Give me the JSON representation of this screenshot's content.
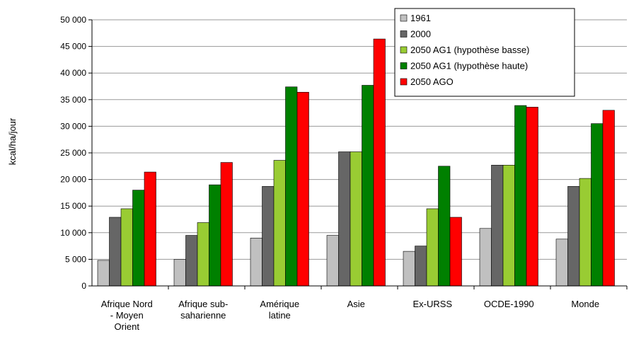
{
  "chart_data": {
    "type": "bar",
    "title": "",
    "xlabel": "",
    "ylabel": "kcal/ha/jour",
    "ylim": [
      0,
      50000
    ],
    "yticks": [
      0,
      5000,
      10000,
      15000,
      20000,
      25000,
      30000,
      35000,
      40000,
      45000,
      50000
    ],
    "ytick_labels": [
      "0",
      "5 000",
      "10 000",
      "15 000",
      "20 000",
      "25 000",
      "30 000",
      "35 000",
      "40 000",
      "45 000",
      "50 000"
    ],
    "grid": true,
    "legend_position": "top-right",
    "categories": [
      [
        "Afrique Nord",
        "- Moyen",
        "Orient"
      ],
      [
        "Afrique sub-",
        "saharienne"
      ],
      [
        "Amérique",
        "latine"
      ],
      [
        "Asie"
      ],
      [
        "Ex-URSS"
      ],
      [
        "OCDE-1990"
      ],
      [
        "Monde"
      ]
    ],
    "series": [
      {
        "name": "1961",
        "color": "#c0c0c0",
        "values": [
          4800,
          5000,
          9000,
          9500,
          6500,
          10800,
          8800
        ]
      },
      {
        "name": "2000",
        "color": "#666666",
        "values": [
          12900,
          9500,
          18700,
          25200,
          7500,
          22700,
          18700
        ]
      },
      {
        "name": "2050 AG1 (hypothèse basse)",
        "color": "#99cc33",
        "values": [
          14500,
          11900,
          23600,
          25200,
          14500,
          22700,
          20200
        ]
      },
      {
        "name": "2050 AG1 (hypothèse haute)",
        "color": "#008000",
        "values": [
          18000,
          19000,
          37400,
          37700,
          22500,
          33900,
          30500
        ]
      },
      {
        "name": "2050 AGO",
        "color": "#ff0000",
        "values": [
          21400,
          23200,
          36400,
          46400,
          12900,
          33600,
          33000
        ]
      }
    ]
  }
}
